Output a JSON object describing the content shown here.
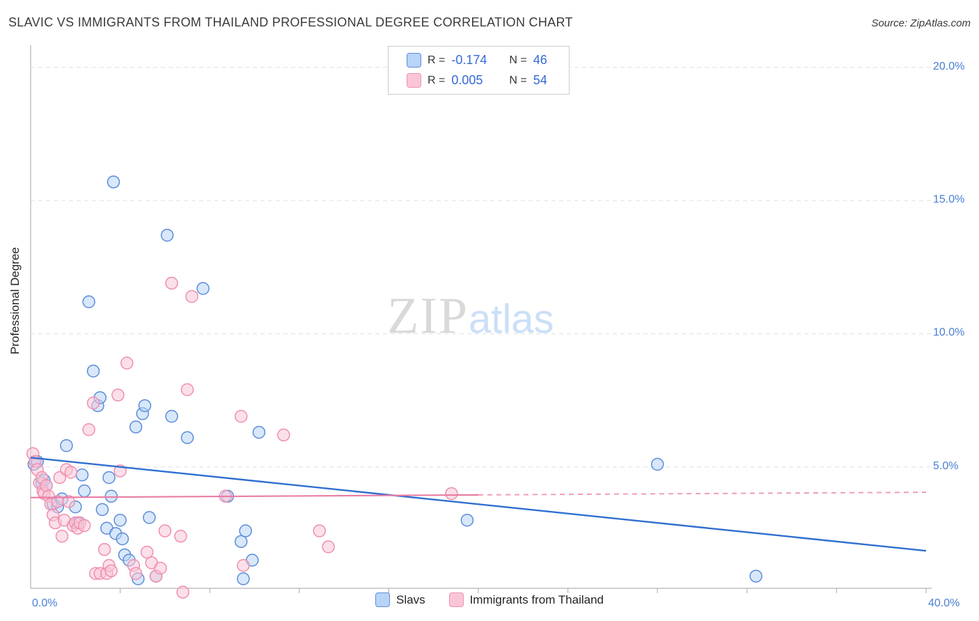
{
  "title": "SLAVIC VS IMMIGRANTS FROM THAILAND PROFESSIONAL DEGREE CORRELATION CHART",
  "source": "Source: ZipAtlas.com",
  "watermark": {
    "zip": "ZIP",
    "atlas": "atlas"
  },
  "y_axis": {
    "label": "Professional Degree",
    "ticks": [
      "20.0%",
      "15.0%",
      "10.0%",
      "5.0%"
    ]
  },
  "x_axis": {
    "min_label": "0.0%",
    "max_label": "40.0%"
  },
  "legend_box": {
    "rows": [
      {
        "series": "slavs",
        "r_label": "R =",
        "r_value": "-0.174",
        "n_label": "N =",
        "n_value": "46"
      },
      {
        "series": "thailand",
        "r_label": "R =",
        "r_value": "0.005",
        "n_label": "N =",
        "n_value": "54"
      }
    ]
  },
  "bottom_legend": [
    {
      "series": "slavs",
      "label": "Slavs"
    },
    {
      "series": "thailand",
      "label": "Immigrants from Thailand"
    }
  ],
  "colors": {
    "slavs_fill": "#B8D4F6",
    "slavs_stroke": "#5B8DD9",
    "slavs_trend": "#2E6FD0",
    "thailand_fill": "#FAC6D7",
    "thailand_stroke": "#EE8FAF",
    "thailand_trend": "#E97CA4",
    "grid": "#DFDFDF",
    "axis": "#B5B5B5",
    "tick_text_blue": "#4A7FD4"
  },
  "chart_data": {
    "type": "scatter",
    "xlabel": "",
    "ylabel": "Professional Degree",
    "xlim": [
      0,
      40
    ],
    "ylim": [
      0,
      20.5
    ],
    "grid_y_percent": [
      5,
      10,
      15,
      20
    ],
    "x_tick_percent": [
      4,
      8,
      12,
      16,
      20,
      24,
      28,
      32,
      36,
      40
    ],
    "legend_position": "bottom",
    "series": [
      {
        "name": "Slavs",
        "key": "slavs",
        "r": -0.174,
        "n": 46,
        "points": [
          [
            0.15,
            5.1
          ],
          [
            0.3,
            5.2
          ],
          [
            0.5,
            4.4
          ],
          [
            0.6,
            4.5
          ],
          [
            0.7,
            4.3
          ],
          [
            1.0,
            3.6
          ],
          [
            1.2,
            3.5
          ],
          [
            1.4,
            3.8
          ],
          [
            1.6,
            5.8
          ],
          [
            2.0,
            3.5
          ],
          [
            2.1,
            2.9
          ],
          [
            2.3,
            4.7
          ],
          [
            2.4,
            4.1
          ],
          [
            2.6,
            11.2
          ],
          [
            2.8,
            8.6
          ],
          [
            3.0,
            7.3
          ],
          [
            3.1,
            7.6
          ],
          [
            3.2,
            3.4
          ],
          [
            3.4,
            2.7
          ],
          [
            3.5,
            4.6
          ],
          [
            3.6,
            3.9
          ],
          [
            3.7,
            15.7
          ],
          [
            3.8,
            2.5
          ],
          [
            4.0,
            3.0
          ],
          [
            4.1,
            2.3
          ],
          [
            4.2,
            1.7
          ],
          [
            4.4,
            1.5
          ],
          [
            4.7,
            6.5
          ],
          [
            4.8,
            0.8
          ],
          [
            5.0,
            7.0
          ],
          [
            5.1,
            7.3
          ],
          [
            5.3,
            3.1
          ],
          [
            5.6,
            0.9
          ],
          [
            6.1,
            13.7
          ],
          [
            6.3,
            6.9
          ],
          [
            7.0,
            6.1
          ],
          [
            7.7,
            11.7
          ],
          [
            8.8,
            3.9
          ],
          [
            9.4,
            2.2
          ],
          [
            9.5,
            0.8
          ],
          [
            9.6,
            2.6
          ],
          [
            9.9,
            1.5
          ],
          [
            10.2,
            6.3
          ],
          [
            19.5,
            3.0
          ],
          [
            28.0,
            5.1
          ],
          [
            32.4,
            0.9
          ]
        ],
        "trend": {
          "x": [
            0,
            40
          ],
          "y": [
            5.35,
            1.85
          ],
          "style": "solid"
        }
      },
      {
        "name": "Immigrants from Thailand",
        "key": "thailand",
        "r": 0.005,
        "n": 54,
        "points": [
          [
            0.1,
            5.5
          ],
          [
            0.2,
            5.2
          ],
          [
            0.3,
            4.9
          ],
          [
            0.4,
            4.4
          ],
          [
            0.5,
            4.6
          ],
          [
            0.55,
            4.1
          ],
          [
            0.6,
            4.0
          ],
          [
            0.7,
            4.3
          ],
          [
            0.8,
            3.9
          ],
          [
            0.9,
            3.6
          ],
          [
            1.0,
            3.2
          ],
          [
            1.1,
            2.9
          ],
          [
            1.2,
            3.7
          ],
          [
            1.3,
            4.6
          ],
          [
            1.4,
            2.4
          ],
          [
            1.5,
            3.0
          ],
          [
            1.6,
            4.9
          ],
          [
            1.7,
            3.7
          ],
          [
            1.8,
            4.8
          ],
          [
            1.9,
            2.8
          ],
          [
            2.0,
            2.9
          ],
          [
            2.1,
            2.7
          ],
          [
            2.2,
            2.9
          ],
          [
            2.4,
            2.8
          ],
          [
            2.6,
            6.4
          ],
          [
            2.8,
            7.4
          ],
          [
            2.9,
            1.0
          ],
          [
            3.1,
            1.0
          ],
          [
            3.3,
            1.9
          ],
          [
            3.4,
            1.0
          ],
          [
            3.5,
            1.3
          ],
          [
            3.6,
            1.1
          ],
          [
            3.9,
            7.7
          ],
          [
            4.0,
            4.85
          ],
          [
            4.3,
            8.9
          ],
          [
            4.6,
            1.3
          ],
          [
            4.7,
            1.0
          ],
          [
            5.2,
            1.8
          ],
          [
            5.4,
            1.4
          ],
          [
            5.6,
            0.9
          ],
          [
            5.8,
            1.2
          ],
          [
            6.0,
            2.6
          ],
          [
            6.3,
            11.9
          ],
          [
            6.7,
            2.4
          ],
          [
            6.8,
            0.3
          ],
          [
            7.0,
            7.9
          ],
          [
            7.2,
            11.4
          ],
          [
            8.7,
            3.9
          ],
          [
            9.4,
            6.9
          ],
          [
            9.5,
            1.3
          ],
          [
            11.3,
            6.2
          ],
          [
            12.9,
            2.6
          ],
          [
            13.3,
            2.0
          ],
          [
            18.8,
            4.0
          ]
        ],
        "trend": {
          "x": [
            0,
            40
          ],
          "y": [
            3.85,
            4.05
          ],
          "style": "solid_then_dashed",
          "solid_until": 20
        }
      }
    ]
  }
}
